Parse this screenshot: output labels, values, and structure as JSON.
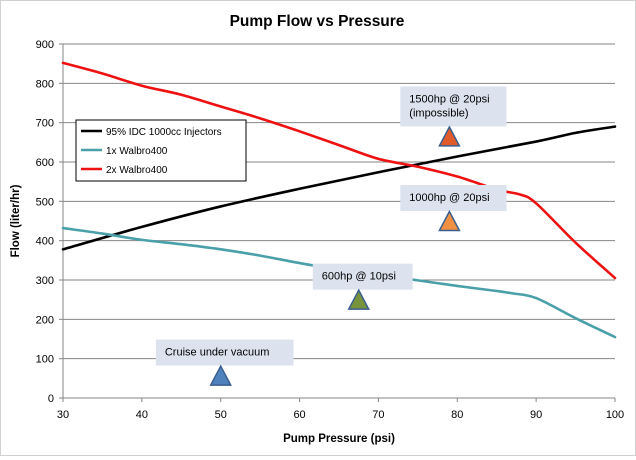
{
  "chart_data": {
    "type": "line",
    "title": "Pump Flow vs Pressure",
    "xlabel": "Pump Pressure (psi)",
    "ylabel": "Flow (liter/hr)",
    "xlim": [
      30,
      100
    ],
    "ylim": [
      0,
      900
    ],
    "xticks": [
      "30",
      "40",
      "50",
      "60",
      "70",
      "80",
      "90",
      "100"
    ],
    "yticks": [
      "0",
      "100",
      "200",
      "300",
      "400",
      "500",
      "600",
      "700",
      "800",
      "900"
    ],
    "grid": "horizontal",
    "legend": "upper-left",
    "series": [
      {
        "name": "95% IDC 1000cc Injectors",
        "color": "#000000",
        "x": [
          30,
          40,
          50,
          60,
          70,
          80,
          90,
          95,
          100
        ],
        "y": [
          378,
          435,
          487,
          532,
          574,
          614,
          652,
          674,
          690
        ]
      },
      {
        "name": "1x Walbro400",
        "color": "#4aa0a8",
        "x": [
          30,
          35,
          40,
          45,
          50,
          55,
          60,
          65,
          70,
          75,
          80,
          85,
          87,
          90,
          95,
          100
        ],
        "y": [
          432,
          418,
          402,
          391,
          378,
          362,
          343,
          326,
          313,
          299,
          285,
          272,
          266,
          254,
          203,
          155
        ]
      },
      {
        "name": "2x Walbro400",
        "color": "#ee1111",
        "x": [
          30,
          35,
          40,
          45,
          50,
          55,
          60,
          65,
          70,
          75,
          80,
          85,
          88,
          90,
          95,
          100
        ],
        "y": [
          852,
          825,
          794,
          771,
          741,
          711,
          678,
          643,
          608,
          588,
          563,
          530,
          517,
          495,
          395,
          305
        ]
      }
    ],
    "annotations": [
      {
        "text": "1500hp @ 20psi\n(impossible)",
        "x": 79,
        "y": 665,
        "marker_color": "#e05a2a"
      },
      {
        "text": "1000hp @ 20psi",
        "x": 79,
        "y": 450,
        "marker_color": "#f09040"
      },
      {
        "text": "600hp @ 10psi",
        "x": 67.5,
        "y": 250,
        "marker_color": "#77933c"
      },
      {
        "text": "Cruise under vacuum",
        "x": 50,
        "y": 57,
        "marker_color": "#4f81bd"
      }
    ]
  }
}
